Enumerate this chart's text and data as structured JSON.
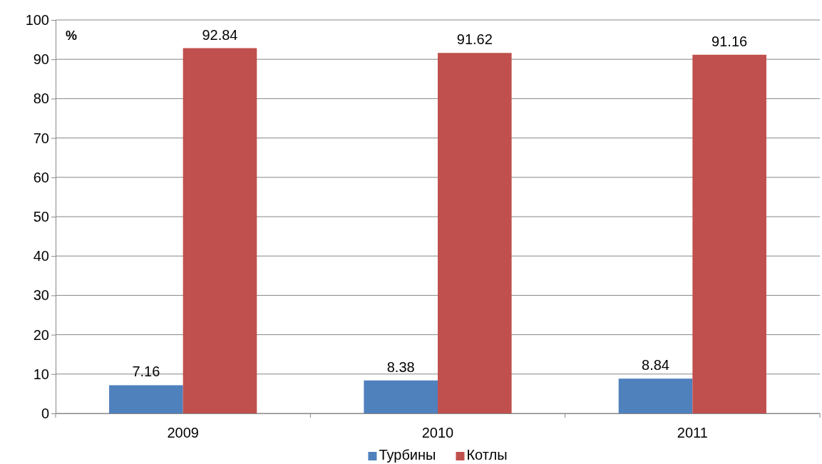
{
  "chart_data": {
    "type": "bar",
    "ylabel": "%",
    "categories": [
      "2009",
      "2010",
      "2011"
    ],
    "series": [
      {
        "name": "Турбины",
        "color": "#4f81bd",
        "values": [
          7.16,
          8.38,
          8.84
        ]
      },
      {
        "name": "Котлы",
        "color": "#c0504d",
        "values": [
          92.84,
          91.62,
          91.16
        ]
      }
    ],
    "ylim": [
      0,
      100
    ],
    "yticks": [
      0,
      10,
      20,
      30,
      40,
      50,
      60,
      70,
      80,
      90,
      100
    ],
    "grid": "y",
    "data_labels": true,
    "legend": "bottom"
  }
}
